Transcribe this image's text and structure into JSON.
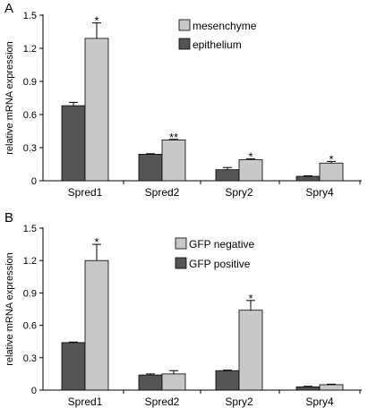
{
  "chart_data": [
    {
      "type": "bar",
      "panel_label": "A",
      "title": "",
      "xlabel": "",
      "ylabel": "relative mRNA expression",
      "ylim": [
        0,
        1.5
      ],
      "yticks": [
        "0",
        "0.3",
        "0.6",
        "0.9",
        "1.2",
        "1.5"
      ],
      "categories": [
        "Spred1",
        "Spred2",
        "Spry2",
        "Spry4"
      ],
      "series": [
        {
          "name": "epithelium",
          "color": "#555555",
          "values": [
            0.68,
            0.24,
            0.1,
            0.04
          ],
          "errors": [
            0.03,
            0.005,
            0.02,
            0.005
          ]
        },
        {
          "name": "mesenchyme",
          "color": "#c8c8c8",
          "values": [
            1.29,
            0.37,
            0.19,
            0.16
          ],
          "errors": [
            0.14,
            0.005,
            0.01,
            0.015
          ]
        }
      ],
      "legend_order": [
        "mesenchyme",
        "epithelium"
      ],
      "legend_position": "top-right",
      "significance": [
        "*",
        "**",
        "*",
        "*"
      ]
    },
    {
      "type": "bar",
      "panel_label": "B",
      "title": "",
      "xlabel": "",
      "ylabel": "relative mRNA expression",
      "ylim": [
        0,
        1.5
      ],
      "yticks": [
        "0",
        "0.3",
        "0.6",
        "0.9",
        "1.2",
        "1.5"
      ],
      "categories": [
        "Spred1",
        "Spred2",
        "Spry2",
        "Spry4"
      ],
      "series": [
        {
          "name": "GFP positive",
          "color": "#555555",
          "values": [
            0.44,
            0.14,
            0.18,
            0.03
          ],
          "errors": [
            0.005,
            0.01,
            0.005,
            0.005
          ]
        },
        {
          "name": "GFP negative",
          "color": "#c8c8c8",
          "values": [
            1.2,
            0.15,
            0.74,
            0.05
          ],
          "errors": [
            0.15,
            0.03,
            0.09,
            0.005
          ]
        }
      ],
      "legend_order": [
        "GFP negative",
        "GFP positive"
      ],
      "legend_position": "top-right",
      "significance": [
        "*",
        "",
        "*",
        ""
      ]
    }
  ]
}
